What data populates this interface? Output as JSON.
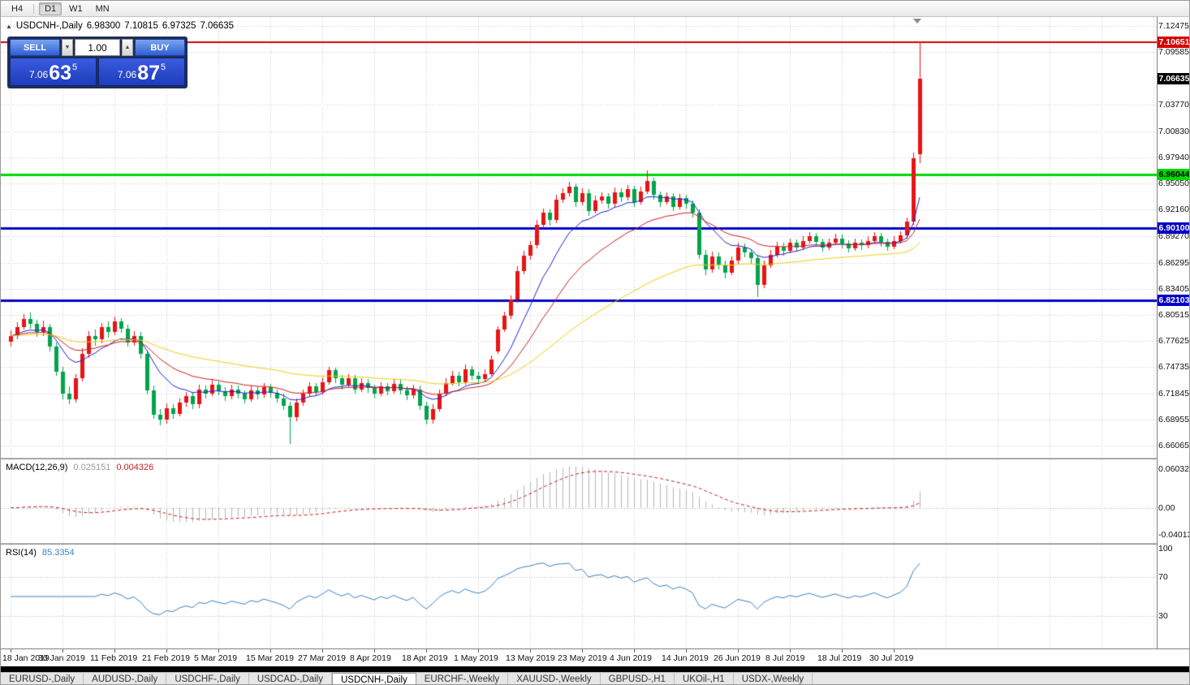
{
  "toolbar": {
    "timeframes": [
      {
        "label": "H4",
        "active": false
      },
      {
        "label": "D1",
        "active": true
      },
      {
        "label": "W1",
        "active": false
      },
      {
        "label": "MN",
        "active": false
      }
    ]
  },
  "icons": {
    "collapse": "▲",
    "spin_up": "▲",
    "spin_down": "▼",
    "shift_marker": "▼"
  },
  "chart_header": {
    "symbol_period": "USDCNH-,Daily",
    "open": "6.98300",
    "high": "7.10815",
    "low": "6.97325",
    "close": "7.06635"
  },
  "trade_panel": {
    "sell_label": "SELL",
    "buy_label": "BUY",
    "volume": "1.00",
    "sell_price": {
      "prefix": "7.06",
      "big": "63",
      "sup": "5"
    },
    "buy_price": {
      "prefix": "7.06",
      "big": "87",
      "sup": "5"
    }
  },
  "price_scale": {
    "grid_labels": [
      7.12475,
      7.09585,
      7.0377,
      7.0083,
      6.9794,
      6.9505,
      6.9216,
      6.8927,
      6.86295,
      6.83405,
      6.80515,
      6.77625,
      6.74735,
      6.71845,
      6.68955,
      6.66065
    ],
    "badges": [
      {
        "text": "7.10651",
        "price": 7.10651,
        "bg": "#d60000",
        "fg": "#ffffff"
      },
      {
        "text": "7.06635",
        "price": 7.06635,
        "bg": "#000000",
        "fg": "#ffffff"
      },
      {
        "text": "6.96044",
        "price": 6.96044,
        "bg": "#00d800",
        "fg": "#000000"
      },
      {
        "text": "6.90100",
        "price": 6.901,
        "bg": "#0000c8",
        "fg": "#ffffff"
      },
      {
        "text": "6.82103",
        "price": 6.82103,
        "bg": "#0000c8",
        "fg": "#ffffff"
      }
    ]
  },
  "macd_panel": {
    "name": "MACD(12,26,9)",
    "value_main": "0.025151",
    "value_signal": "0.004326",
    "scale_top": "0.060329",
    "scale_zero": "0.00",
    "scale_bottom": "-0.040135"
  },
  "rsi_panel": {
    "name": "RSI(14)",
    "value": "85.3354",
    "scale_labels": [
      100,
      70,
      30
    ],
    "levels": [
      70,
      30
    ]
  },
  "time_axis": {
    "labels": [
      "18 Jan 2019",
      "30 Jan 2019",
      "11 Feb 2019",
      "21 Feb 2019",
      "5 Mar 2019",
      "15 Mar 2019",
      "27 Mar 2019",
      "8 Apr 2019",
      "18 Apr 2019",
      "1 May 2019",
      "13 May 2019",
      "23 May 2019",
      "4 Jun 2019",
      "14 Jun 2019",
      "26 Jun 2019",
      "8 Jul 2019",
      "18 Jul 2019",
      "30 Jul 2019"
    ]
  },
  "tabs": {
    "items": [
      "EURUSD-,Daily",
      "AUDUSD-,Daily",
      "USDCHF-,Daily",
      "USDCAD-,Daily",
      "USDCNH-,Daily",
      "EURCHF-,Weekly",
      "XAUUSD-,Weekly",
      "GBPUSD-,H1",
      "UKOil-,H1",
      "USDX-,Weekly"
    ],
    "active_index": 4
  },
  "chart_data": {
    "type": "candlestick",
    "title": "USDCNH-,Daily",
    "up_color": "#e81414",
    "down_color": "#00a44a",
    "grid_color": "#cdcdcd",
    "x_label_step": 8,
    "price_axis": {
      "top": 7.12475,
      "bottom": 6.66065
    },
    "hlines": [
      {
        "price": 7.10651,
        "color": "#d60000",
        "width": 2
      },
      {
        "price": 6.96044,
        "color": "#00d800",
        "width": 3
      },
      {
        "price": 6.901,
        "color": "#0000c8",
        "width": 3
      },
      {
        "price": 6.82103,
        "color": "#0000c8",
        "width": 3
      }
    ],
    "ma_lines": [
      {
        "type": "ema",
        "period": 10,
        "color": "#2222d8"
      },
      {
        "type": "ema",
        "period": 21,
        "color": "#cc2222"
      },
      {
        "type": "ema",
        "period": 55,
        "color": "#f2cd12"
      }
    ],
    "macd": {
      "fast": 12,
      "slow": 26,
      "signal": 9,
      "hist_color": "#b5b5b5",
      "signal_color": "#cc2222",
      "current_main": 0.025151,
      "current_signal": 0.004326,
      "axis_max": 0.060329,
      "axis_min": -0.040135
    },
    "rsi": {
      "period": 14,
      "color": "#3c82c8",
      "current": 85.3354,
      "levels": [
        70,
        30
      ]
    },
    "last_candle_ohlc": {
      "open": 6.983,
      "high": 7.10815,
      "low": 6.97325,
      "close": 7.06635
    },
    "candles": [
      [
        6.776,
        6.788,
        6.77,
        6.782
      ],
      [
        6.782,
        6.797,
        6.778,
        6.792
      ],
      [
        6.792,
        6.806,
        6.789,
        6.801
      ],
      [
        6.801,
        6.808,
        6.79,
        6.795
      ],
      [
        6.795,
        6.8,
        6.781,
        6.786
      ],
      [
        6.786,
        6.799,
        6.782,
        6.792
      ],
      [
        6.792,
        6.795,
        6.765,
        6.77
      ],
      [
        6.77,
        6.775,
        6.738,
        6.742
      ],
      [
        6.742,
        6.748,
        6.712,
        6.718
      ],
      [
        6.718,
        6.726,
        6.706,
        6.712
      ],
      [
        6.712,
        6.74,
        6.708,
        6.735
      ],
      [
        6.735,
        6.768,
        6.732,
        6.762
      ],
      [
        6.762,
        6.787,
        6.758,
        6.782
      ],
      [
        6.782,
        6.789,
        6.771,
        6.778
      ],
      [
        6.778,
        6.796,
        6.774,
        6.792
      ],
      [
        6.792,
        6.798,
        6.78,
        6.786
      ],
      [
        6.786,
        6.803,
        6.783,
        6.798
      ],
      [
        6.798,
        6.802,
        6.785,
        6.79
      ],
      [
        6.79,
        6.794,
        6.77,
        6.775
      ],
      [
        6.775,
        6.787,
        6.771,
        6.782
      ],
      [
        6.782,
        6.786,
        6.757,
        6.762
      ],
      [
        6.762,
        6.766,
        6.717,
        6.722
      ],
      [
        6.722,
        6.727,
        6.69,
        6.695
      ],
      [
        6.695,
        6.701,
        6.683,
        6.689
      ],
      [
        6.689,
        6.707,
        6.685,
        6.702
      ],
      [
        6.702,
        6.706,
        6.69,
        6.696
      ],
      [
        6.696,
        6.713,
        6.693,
        6.708
      ],
      [
        6.708,
        6.72,
        6.704,
        6.715
      ],
      [
        6.715,
        6.719,
        6.701,
        6.706
      ],
      [
        6.706,
        6.728,
        6.702,
        6.723
      ],
      [
        6.723,
        6.727,
        6.713,
        6.718
      ],
      [
        6.718,
        6.733,
        6.715,
        6.728
      ],
      [
        6.728,
        6.732,
        6.716,
        6.721
      ],
      [
        6.721,
        6.725,
        6.71,
        6.715
      ],
      [
        6.715,
        6.728,
        6.712,
        6.723
      ],
      [
        6.723,
        6.727,
        6.713,
        6.718
      ],
      [
        6.718,
        6.722,
        6.707,
        6.712
      ],
      [
        6.712,
        6.727,
        6.709,
        6.722
      ],
      [
        6.722,
        6.726,
        6.712,
        6.717
      ],
      [
        6.717,
        6.73,
        6.714,
        6.725
      ],
      [
        6.725,
        6.729,
        6.714,
        6.719
      ],
      [
        6.719,
        6.723,
        6.708,
        6.713
      ],
      [
        6.713,
        6.718,
        6.7,
        6.705
      ],
      [
        6.705,
        6.709,
        6.662,
        6.692
      ],
      [
        6.692,
        6.713,
        6.688,
        6.708
      ],
      [
        6.708,
        6.723,
        6.705,
        6.718
      ],
      [
        6.718,
        6.731,
        6.715,
        6.726
      ],
      [
        6.726,
        6.73,
        6.715,
        6.72
      ],
      [
        6.72,
        6.736,
        6.717,
        6.731
      ],
      [
        6.731,
        6.748,
        6.728,
        6.744
      ],
      [
        6.744,
        6.747,
        6.73,
        6.735
      ],
      [
        6.735,
        6.739,
        6.723,
        6.728
      ],
      [
        6.728,
        6.74,
        6.725,
        6.735
      ],
      [
        6.735,
        6.739,
        6.718,
        6.723
      ],
      [
        6.723,
        6.735,
        6.72,
        6.73
      ],
      [
        6.73,
        6.734,
        6.719,
        6.724
      ],
      [
        6.724,
        6.728,
        6.713,
        6.718
      ],
      [
        6.718,
        6.731,
        6.715,
        6.726
      ],
      [
        6.726,
        6.73,
        6.716,
        6.721
      ],
      [
        6.721,
        6.734,
        6.718,
        6.729
      ],
      [
        6.729,
        6.733,
        6.717,
        6.722
      ],
      [
        6.722,
        6.726,
        6.711,
        6.716
      ],
      [
        6.716,
        6.728,
        6.713,
        6.723
      ],
      [
        6.723,
        6.727,
        6.7,
        6.705
      ],
      [
        6.705,
        6.709,
        6.684,
        6.689
      ],
      [
        6.689,
        6.706,
        6.685,
        6.701
      ],
      [
        6.701,
        6.723,
        6.698,
        6.718
      ],
      [
        6.718,
        6.735,
        6.715,
        6.73
      ],
      [
        6.73,
        6.743,
        6.727,
        6.738
      ],
      [
        6.738,
        6.742,
        6.726,
        6.731
      ],
      [
        6.731,
        6.75,
        6.728,
        6.745
      ],
      [
        6.745,
        6.749,
        6.733,
        6.738
      ],
      [
        6.738,
        6.742,
        6.729,
        6.734
      ],
      [
        6.734,
        6.745,
        6.731,
        6.74
      ],
      [
        6.74,
        6.76,
        6.738,
        6.756
      ],
      [
        6.765,
        6.793,
        6.762,
        6.789
      ],
      [
        6.789,
        6.809,
        6.786,
        6.804
      ],
      [
        6.804,
        6.827,
        6.801,
        6.822
      ],
      [
        6.822,
        6.859,
        6.819,
        6.854
      ],
      [
        6.854,
        6.876,
        6.85,
        6.871
      ],
      [
        6.871,
        6.887,
        6.866,
        6.882
      ],
      [
        6.882,
        6.91,
        6.879,
        6.905
      ],
      [
        6.905,
        6.923,
        6.901,
        6.918
      ],
      [
        6.918,
        6.922,
        6.904,
        6.91
      ],
      [
        6.91,
        6.938,
        6.907,
        6.933
      ],
      [
        6.933,
        6.945,
        6.929,
        6.94
      ],
      [
        6.94,
        6.952,
        6.936,
        6.947
      ],
      [
        6.947,
        6.951,
        6.925,
        6.93
      ],
      [
        6.93,
        6.945,
        6.926,
        6.94
      ],
      [
        6.94,
        6.944,
        6.915,
        6.92
      ],
      [
        6.92,
        6.937,
        6.917,
        6.932
      ],
      [
        6.932,
        6.941,
        6.928,
        6.936
      ],
      [
        6.936,
        6.94,
        6.923,
        6.928
      ],
      [
        6.928,
        6.946,
        6.925,
        6.941
      ],
      [
        6.941,
        6.945,
        6.93,
        6.935
      ],
      [
        6.935,
        6.949,
        6.932,
        6.944
      ],
      [
        6.944,
        6.948,
        6.925,
        6.93
      ],
      [
        6.93,
        6.947,
        6.927,
        6.942
      ],
      [
        6.942,
        6.965,
        6.939,
        6.953
      ],
      [
        6.953,
        6.957,
        6.933,
        6.938
      ],
      [
        6.938,
        6.942,
        6.925,
        6.93
      ],
      [
        6.93,
        6.941,
        6.927,
        6.936
      ],
      [
        6.936,
        6.94,
        6.92,
        6.925
      ],
      [
        6.925,
        6.939,
        6.922,
        6.934
      ],
      [
        6.934,
        6.938,
        6.923,
        6.928
      ],
      [
        6.928,
        6.932,
        6.913,
        6.918
      ],
      [
        6.918,
        6.922,
        6.867,
        6.872
      ],
      [
        6.872,
        6.877,
        6.849,
        6.855
      ],
      [
        6.855,
        6.875,
        6.852,
        6.87
      ],
      [
        6.87,
        6.874,
        6.855,
        6.86
      ],
      [
        6.86,
        6.865,
        6.846,
        6.852
      ],
      [
        6.852,
        6.87,
        6.849,
        6.865
      ],
      [
        6.865,
        6.885,
        6.862,
        6.88
      ],
      [
        6.88,
        6.884,
        6.869,
        6.874
      ],
      [
        6.874,
        6.878,
        6.862,
        6.868
      ],
      [
        6.868,
        6.872,
        6.825,
        6.838
      ],
      [
        6.838,
        6.865,
        6.835,
        6.86
      ],
      [
        6.86,
        6.877,
        6.857,
        6.872
      ],
      [
        6.872,
        6.886,
        6.869,
        6.881
      ],
      [
        6.881,
        6.885,
        6.871,
        6.876
      ],
      [
        6.876,
        6.89,
        6.873,
        6.885
      ],
      [
        6.885,
        6.889,
        6.875,
        6.88
      ],
      [
        6.88,
        6.892,
        6.877,
        6.887
      ],
      [
        6.887,
        6.897,
        6.884,
        6.892
      ],
      [
        6.892,
        6.896,
        6.881,
        6.886
      ],
      [
        6.886,
        6.89,
        6.875,
        6.88
      ],
      [
        6.88,
        6.89,
        6.877,
        6.885
      ],
      [
        6.885,
        6.895,
        6.882,
        6.89
      ],
      [
        6.89,
        6.894,
        6.879,
        6.884
      ],
      [
        6.884,
        6.888,
        6.874,
        6.879
      ],
      [
        6.879,
        6.89,
        6.876,
        6.885
      ],
      [
        6.885,
        6.889,
        6.877,
        6.882
      ],
      [
        6.882,
        6.892,
        6.879,
        6.887
      ],
      [
        6.887,
        6.897,
        6.884,
        6.892
      ],
      [
        6.892,
        6.896,
        6.881,
        6.886
      ],
      [
        6.886,
        6.89,
        6.876,
        6.881
      ],
      [
        6.881,
        6.892,
        6.878,
        6.887
      ],
      [
        6.887,
        6.898,
        6.884,
        6.893
      ],
      [
        6.893,
        6.913,
        6.89,
        6.908
      ],
      [
        6.908,
        6.985,
        6.905,
        6.978
      ],
      [
        6.983,
        7.1081,
        6.9732,
        7.0663
      ]
    ]
  }
}
